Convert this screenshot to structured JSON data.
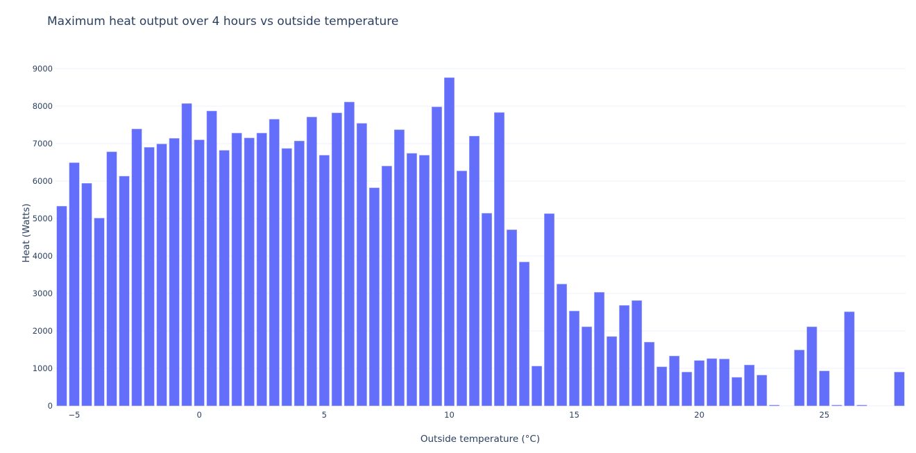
{
  "chart_data": {
    "type": "bar",
    "title": "Maximum heat output over 4 hours vs outside temperature",
    "xlabel": "Outside temperature (°C)",
    "ylabel": "Heat (Watts)",
    "xlim": [
      -5.75,
      28.25
    ],
    "ylim": [
      0,
      9000
    ],
    "xticks": [
      -5,
      0,
      5,
      10,
      15,
      20,
      25
    ],
    "xtick_labels": [
      "−5",
      "0",
      "5",
      "10",
      "15",
      "20",
      "25"
    ],
    "yticks": [
      0,
      1000,
      2000,
      3000,
      4000,
      5000,
      6000,
      7000,
      8000,
      9000
    ],
    "ytick_labels": [
      "0",
      "1000",
      "2000",
      "3000",
      "4000",
      "5000",
      "6000",
      "7000",
      "8000",
      "9000"
    ],
    "grid": true,
    "bar_color": "#636efa",
    "x": [
      -5.5,
      -5,
      -4.5,
      -4,
      -3.5,
      -3,
      -2.5,
      -2,
      -1.5,
      -1,
      -0.5,
      0,
      0.5,
      1,
      1.5,
      2,
      2.5,
      3,
      3.5,
      4,
      4.5,
      5,
      5.5,
      6,
      6.5,
      7,
      7.5,
      8,
      8.5,
      9,
      9.5,
      10,
      10.5,
      11,
      11.5,
      12,
      12.5,
      13,
      13.5,
      14,
      14.5,
      15,
      15.5,
      16,
      16.5,
      17,
      17.5,
      18,
      18.5,
      19,
      19.5,
      20,
      20.5,
      21,
      21.5,
      22,
      22.5,
      23,
      23.5,
      24,
      24.5,
      25,
      25.5,
      26,
      26.5,
      27,
      27.5,
      28
    ],
    "values": [
      5330,
      6490,
      5940,
      5010,
      6780,
      6130,
      7390,
      6900,
      6990,
      7140,
      8070,
      7100,
      7870,
      6820,
      7280,
      7150,
      7280,
      7650,
      6870,
      7070,
      7710,
      6690,
      7820,
      8110,
      7540,
      5820,
      6400,
      7370,
      6740,
      6690,
      7980,
      8760,
      6270,
      7200,
      5140,
      7830,
      4700,
      3840,
      1060,
      5130,
      3250,
      2530,
      2110,
      3030,
      1850,
      2680,
      2810,
      1700,
      1040,
      1330,
      900,
      1210,
      1260,
      1250,
      760,
      1090,
      820,
      20,
      0,
      1490,
      2110,
      930,
      20,
      2510,
      20,
      0,
      0,
      900
    ]
  }
}
